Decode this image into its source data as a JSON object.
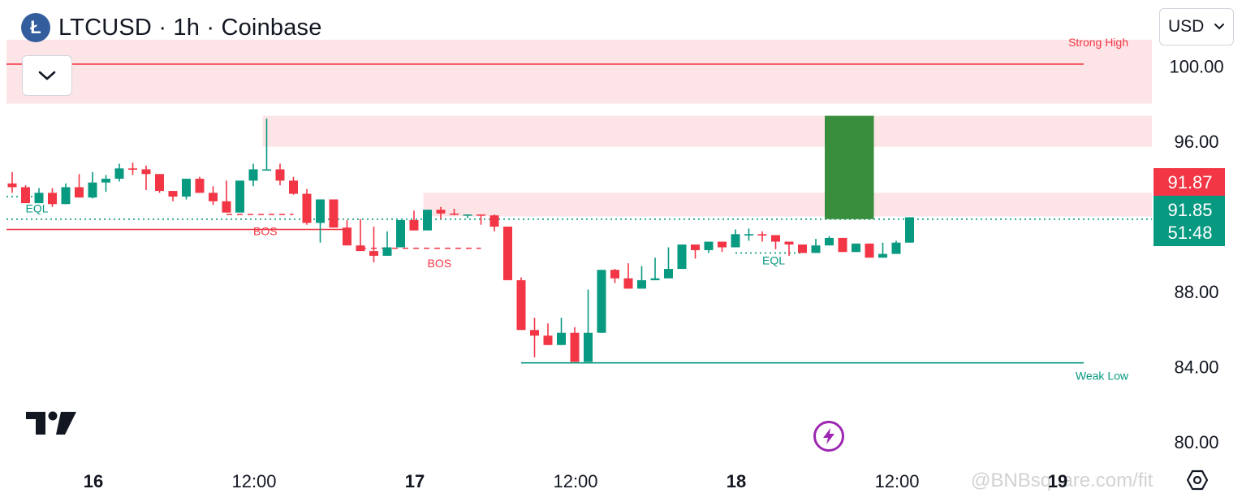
{
  "header": {
    "symbol_title": "LTCUSD · 1h · Coinbase",
    "coin_glyph": "Ł"
  },
  "currency": {
    "value": "USD"
  },
  "watermark": "@BNBsquare.com/fit",
  "colors": {
    "up": "#089981",
    "down": "#f23645",
    "zone": "#fde4e6",
    "lime_box": "#388e3c",
    "purple": "#9c27b0"
  },
  "chart_data": {
    "type": "candlestick",
    "symbol": "LTCUSD",
    "interval": "1h",
    "exchange": "Coinbase",
    "ylim": [
      79.0,
      102.0
    ],
    "y_ticks": [
      100.0,
      96.0,
      88.0,
      84.0,
      80.0
    ],
    "y_tick_labels": [
      "100.00",
      "96.00",
      "88.00",
      "84.00",
      "80.00"
    ],
    "x_ticks": [
      {
        "index": 6,
        "label": "16",
        "bold": true
      },
      {
        "index": 18,
        "label": "12:00",
        "bold": false
      },
      {
        "index": 30,
        "label": "17",
        "bold": true
      },
      {
        "index": 42,
        "label": "12:00",
        "bold": false
      },
      {
        "index": 54,
        "label": "18",
        "bold": true
      },
      {
        "index": 66,
        "label": "12:00",
        "bold": false
      },
      {
        "index": 78,
        "label": "19",
        "bold": true
      }
    ],
    "price_labels": [
      {
        "value": 91.87,
        "text": "91.87",
        "color": "#f23645"
      },
      {
        "value": 91.85,
        "text": "91.85",
        "sub": "51:48",
        "color": "#089981"
      }
    ],
    "candles": [
      [
        93.75,
        94.35,
        93.25,
        93.55
      ],
      [
        93.55,
        93.65,
        92.75,
        92.7
      ],
      [
        92.7,
        93.5,
        92.9,
        93.25
      ],
      [
        93.25,
        93.5,
        92.5,
        92.65
      ],
      [
        92.65,
        93.75,
        93.1,
        93.55
      ],
      [
        93.55,
        94.25,
        93.2,
        93.0
      ],
      [
        93.0,
        94.35,
        92.95,
        93.8
      ],
      [
        93.8,
        94.2,
        93.3,
        94.0
      ],
      [
        94.0,
        94.8,
        93.85,
        94.55
      ],
      [
        94.55,
        94.85,
        94.2,
        94.5
      ],
      [
        94.5,
        94.7,
        93.4,
        94.25
      ],
      [
        94.25,
        94.05,
        93.25,
        93.35
      ],
      [
        93.35,
        93.15,
        92.8,
        93.05
      ],
      [
        93.05,
        93.95,
        92.9,
        94.0
      ],
      [
        94.0,
        94.1,
        93.35,
        93.25
      ],
      [
        93.25,
        93.6,
        92.6,
        92.8
      ],
      [
        92.8,
        93.9,
        93.4,
        92.2
      ],
      [
        92.2,
        93.6,
        93.45,
        93.9
      ],
      [
        93.9,
        94.8,
        93.6,
        94.5
      ],
      [
        94.5,
        97.2,
        94.45,
        94.5
      ],
      [
        94.5,
        94.8,
        93.65,
        93.9
      ],
      [
        93.9,
        94.1,
        93.15,
        93.2
      ],
      [
        93.2,
        93.45,
        91.55,
        91.65
      ],
      [
        91.65,
        92.55,
        90.6,
        92.9
      ],
      [
        92.9,
        92.75,
        91.45,
        91.4
      ],
      [
        91.4,
        91.8,
        91.0,
        90.45
      ],
      [
        90.45,
        91.85,
        91.4,
        90.15
      ],
      [
        90.15,
        91.45,
        89.55,
        89.9
      ],
      [
        89.9,
        91.2,
        89.95,
        90.35
      ],
      [
        90.35,
        91.55,
        90.7,
        91.8
      ],
      [
        91.8,
        92.3,
        91.45,
        91.25
      ],
      [
        91.25,
        92.15,
        92.05,
        92.35
      ],
      [
        92.35,
        92.5,
        91.85,
        92.15
      ],
      [
        92.15,
        92.4,
        92.05,
        92.1
      ],
      [
        92.1,
        91.95,
        91.9,
        92.1
      ],
      [
        92.1,
        91.95,
        91.55,
        92.05
      ],
      [
        92.05,
        92.1,
        91.2,
        91.45
      ],
      [
        91.45,
        91.3,
        89.4,
        88.6
      ],
      [
        88.6,
        88.75,
        86.8,
        85.95
      ],
      [
        85.95,
        86.6,
        84.5,
        85.65
      ],
      [
        85.65,
        85.95,
        86.3,
        85.15
      ],
      [
        85.15,
        86.6,
        86.1,
        85.8
      ],
      [
        85.8,
        86.05,
        86.1,
        84.25
      ],
      [
        84.25,
        88.1,
        85.9,
        85.8
      ],
      [
        85.8,
        88.45,
        87.95,
        89.15
      ],
      [
        89.15,
        89.2,
        88.45,
        88.7
      ],
      [
        88.7,
        89.05,
        89.5,
        88.15
      ],
      [
        88.15,
        89.3,
        89.35,
        88.6
      ],
      [
        88.6,
        89.8,
        89.2,
        88.7
      ],
      [
        88.7,
        90.35,
        89.25,
        89.2
      ],
      [
        89.2,
        90.15,
        90.15,
        90.5
      ],
      [
        90.5,
        90.05,
        89.75,
        90.2
      ],
      [
        90.2,
        90.45,
        90.05,
        90.65
      ],
      [
        90.65,
        90.55,
        90.1,
        90.35
      ],
      [
        90.35,
        90.85,
        91.3,
        91.05
      ],
      [
        91.05,
        91.35,
        90.7,
        91.05
      ],
      [
        91.05,
        91.2,
        90.65,
        91.0
      ],
      [
        91.0,
        90.55,
        90.25,
        90.65
      ],
      [
        90.65,
        90.3,
        89.9,
        90.5
      ],
      [
        90.5,
        90.45,
        90.05,
        90.05
      ],
      [
        90.05,
        90.8,
        90.3,
        90.45
      ],
      [
        90.45,
        90.95,
        90.45,
        90.85
      ],
      [
        90.85,
        90.8,
        90.4,
        90.1
      ],
      [
        90.1,
        90.4,
        90.3,
        90.55
      ],
      [
        90.55,
        90.35,
        90.05,
        89.8
      ],
      [
        89.8,
        90.6,
        90.3,
        90.0
      ],
      [
        90.0,
        90.7,
        90.6,
        90.6
      ],
      [
        90.6,
        90.8,
        91.85,
        91.95
      ]
    ],
    "zones": [
      {
        "from_index": 0,
        "to_index": 84,
        "top": 101.4,
        "bottom": 98.0,
        "label": "Strong High",
        "line": 100.1,
        "line_to": 80
      },
      {
        "from_index": 19,
        "to_index": 84,
        "top": 97.35,
        "bottom": 95.7
      },
      {
        "from_index": 31,
        "to_index": 84,
        "top": 93.25,
        "bottom": 92.0
      }
    ],
    "structure_lines": [
      {
        "y": 92.1,
        "from_index": 16,
        "to_index": 21,
        "style": "dashed",
        "color": "#f23645"
      },
      {
        "y": 90.3,
        "from_index": 26,
        "to_index": 35,
        "style": "dashed",
        "color": "#f23645"
      },
      {
        "y": 91.3,
        "from_index": 0,
        "to_index": 25,
        "style": "solid",
        "color": "#f23645"
      },
      {
        "y": 84.2,
        "from_index": 38,
        "to_index": 80,
        "style": "solid",
        "color": "#089981"
      },
      {
        "y": 93.05,
        "from_index": 0,
        "to_index": 2,
        "style": "dotted",
        "color": "#089981"
      },
      {
        "y": 90.05,
        "from_index": 54,
        "to_index": 59,
        "style": "dotted",
        "color": "#089981"
      }
    ],
    "level_line": {
      "y": 91.85,
      "style": "dotted",
      "color": "#089981"
    },
    "annotations": [
      {
        "text": "EQL",
        "index": 1,
        "y": 92.2,
        "color": "#089981"
      },
      {
        "text": "BOS",
        "index": 18,
        "y": 91.0,
        "color": "#f23645"
      },
      {
        "text": "BOS",
        "index": 31,
        "y": 89.3,
        "color": "#f23645"
      },
      {
        "text": "EQL",
        "index": 56,
        "y": 89.45,
        "color": "#089981"
      },
      {
        "text": "Weak Low",
        "index": 80,
        "y": 83.3,
        "color": "#089981"
      },
      {
        "text": "Strong High",
        "index": 80,
        "y": 101.05,
        "color": "#f23645"
      }
    ],
    "highlight_box": {
      "from_index": 61,
      "to_index": 64,
      "top": 97.35,
      "bottom": 91.85
    },
    "grid": false
  }
}
